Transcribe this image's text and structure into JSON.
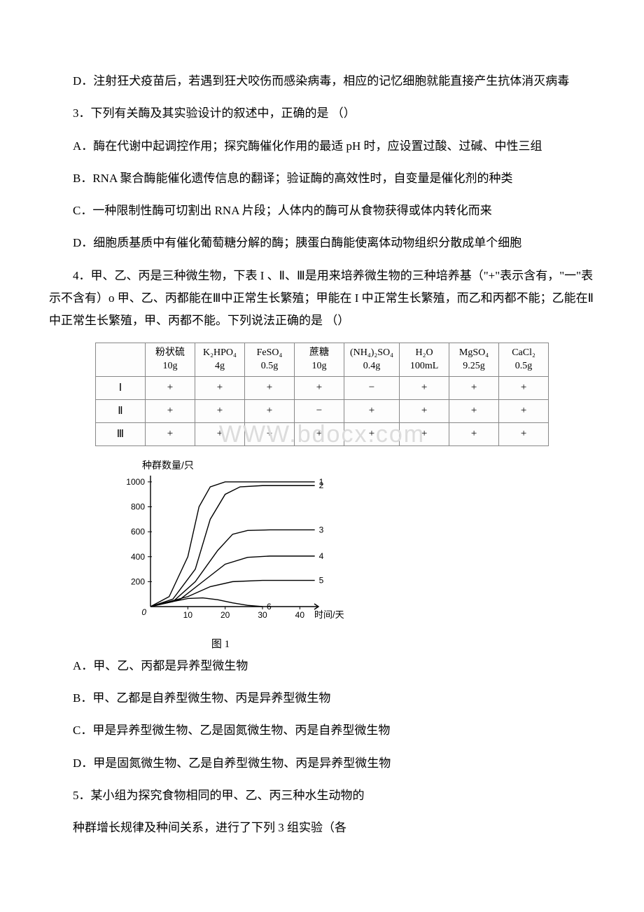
{
  "paragraphs": {
    "pD": "D．注射狂犬疫苗后，若遇到狂犬咬伤而感染病毒，相应的记忆细胞就能直接产生抗体消灭病毒",
    "q3": "3．下列有关酶及其实验设计的叙述中，正确的是    （）",
    "q3A": "A．酶在代谢中起调控作用；探究酶催化作用的最适 pH 时，应设置过酸、过碱、中性三组",
    "q3B": "B．RNA 聚合酶能催化遗传信息的翻译；验证酶的高效性时，自变量是催化剂的种类",
    "q3C": "C．一种限制性酶可切割出 RNA 片段；人体内的酶可从食物获得或体内转化而来",
    "q3D": "D．细胞质基质中有催化葡萄糖分解的酶；胰蛋白酶能使离体动物组织分散成单个细胞",
    "q4": "4．甲、乙、丙是三种微生物，下表 I 、Ⅱ、Ⅲ是用来培养微生物的三种培养基（\"+\"表示含有，\"一\"表示不含有）o 甲、乙、丙都能在Ⅲ中正常生长繁殖；甲能在 I 中正常生长繁殖，而乙和丙都不能；乙能在Ⅱ中正常生长繁殖，甲、丙都不能。下列说法正确的是  （）",
    "q4A": "A．甲、乙、丙都是异养型微生物",
    "q4B": "B．甲、乙都是自养型微生物、丙是异养型微生物",
    "q4C": "C．甲是异养型微生物、乙是固氮微生物、丙是自养型微生物",
    "q4D": "D．甲是固氮微生物、乙是自养型微生物、丙是异养型微生物",
    "q5a": "5．某小组为探究食物相同的甲、乙、丙三种水生动物的",
    "q5b": "种群增长规律及种间关系，进行了下列 3 组实验（各"
  },
  "table": {
    "headers": [
      {
        "top": "粉状硫",
        "bottom": "10g"
      },
      {
        "top": "K₂HPO₄",
        "bottom": "4g"
      },
      {
        "top": "FeSO₄",
        "bottom": "0.5g"
      },
      {
        "top": "蔗糖",
        "bottom": "10g"
      },
      {
        "top": "(NH₄)₂SO₄",
        "bottom": "0.4g"
      },
      {
        "top": "H₂O",
        "bottom": "100mL"
      },
      {
        "top": "MgSO₄",
        "bottom": "9.25g"
      },
      {
        "top": "CaCl₂",
        "bottom": "0.5g"
      }
    ],
    "rows": [
      {
        "label": "Ⅰ",
        "cells": [
          "+",
          "+",
          "+",
          "+",
          "−",
          "+",
          "+",
          "+"
        ]
      },
      {
        "label": "Ⅱ",
        "cells": [
          "+",
          "+",
          "+",
          "−",
          "+",
          "+",
          "+",
          "+"
        ]
      },
      {
        "label": "Ⅲ",
        "cells": [
          "+",
          "+",
          "+",
          "+",
          "+",
          "+",
          "+",
          "+"
        ]
      }
    ],
    "border_color": "#888888",
    "cell_bg": "#fdfdfd"
  },
  "watermark": "WWW.bdocx.com",
  "chart": {
    "type": "line",
    "title_y": "种群数量/只",
    "x_label": "时间/天",
    "caption": "图 1",
    "xlim": [
      0,
      45
    ],
    "ylim": [
      0,
      1050
    ],
    "xticks": [
      10,
      20,
      30,
      40
    ],
    "yticks": [
      200,
      400,
      600,
      800,
      1000
    ],
    "background_color": "#ffffff",
    "axis_color": "#000000",
    "line_color": "#000000",
    "line_width": 1.4,
    "dash_pattern": "3,3",
    "series": [
      {
        "label": "1",
        "points": [
          [
            0,
            0
          ],
          [
            5,
            80
          ],
          [
            10,
            400
          ],
          [
            13,
            800
          ],
          [
            16,
            960
          ],
          [
            20,
            1000
          ],
          [
            30,
            1000
          ],
          [
            40,
            1000
          ],
          [
            44,
            1000
          ]
        ]
      },
      {
        "label": "2",
        "points": [
          [
            0,
            0
          ],
          [
            6,
            60
          ],
          [
            12,
            300
          ],
          [
            16,
            700
          ],
          [
            20,
            900
          ],
          [
            24,
            960
          ],
          [
            30,
            970
          ],
          [
            40,
            970
          ],
          [
            44,
            970
          ]
        ]
      },
      {
        "label": "3",
        "points": [
          [
            0,
            0
          ],
          [
            6,
            40
          ],
          [
            12,
            200
          ],
          [
            18,
            450
          ],
          [
            22,
            580
          ],
          [
            26,
            610
          ],
          [
            32,
            615
          ],
          [
            40,
            615
          ],
          [
            44,
            615
          ]
        ]
      },
      {
        "label": "4",
        "points": [
          [
            0,
            0
          ],
          [
            8,
            60
          ],
          [
            14,
            200
          ],
          [
            20,
            340
          ],
          [
            26,
            395
          ],
          [
            32,
            405
          ],
          [
            40,
            405
          ],
          [
            44,
            405
          ]
        ]
      },
      {
        "label": "5",
        "points": [
          [
            0,
            0
          ],
          [
            10,
            80
          ],
          [
            16,
            160
          ],
          [
            22,
            200
          ],
          [
            30,
            210
          ],
          [
            40,
            210
          ],
          [
            44,
            210
          ]
        ]
      },
      {
        "label": "6",
        "points": [
          [
            0,
            0
          ],
          [
            6,
            40
          ],
          [
            10,
            65
          ],
          [
            14,
            70
          ],
          [
            18,
            55
          ],
          [
            22,
            30
          ],
          [
            26,
            10
          ],
          [
            30,
            0
          ]
        ]
      }
    ],
    "title_fontsize": 14,
    "tick_fontsize": 12,
    "label_fontsize": 13
  }
}
